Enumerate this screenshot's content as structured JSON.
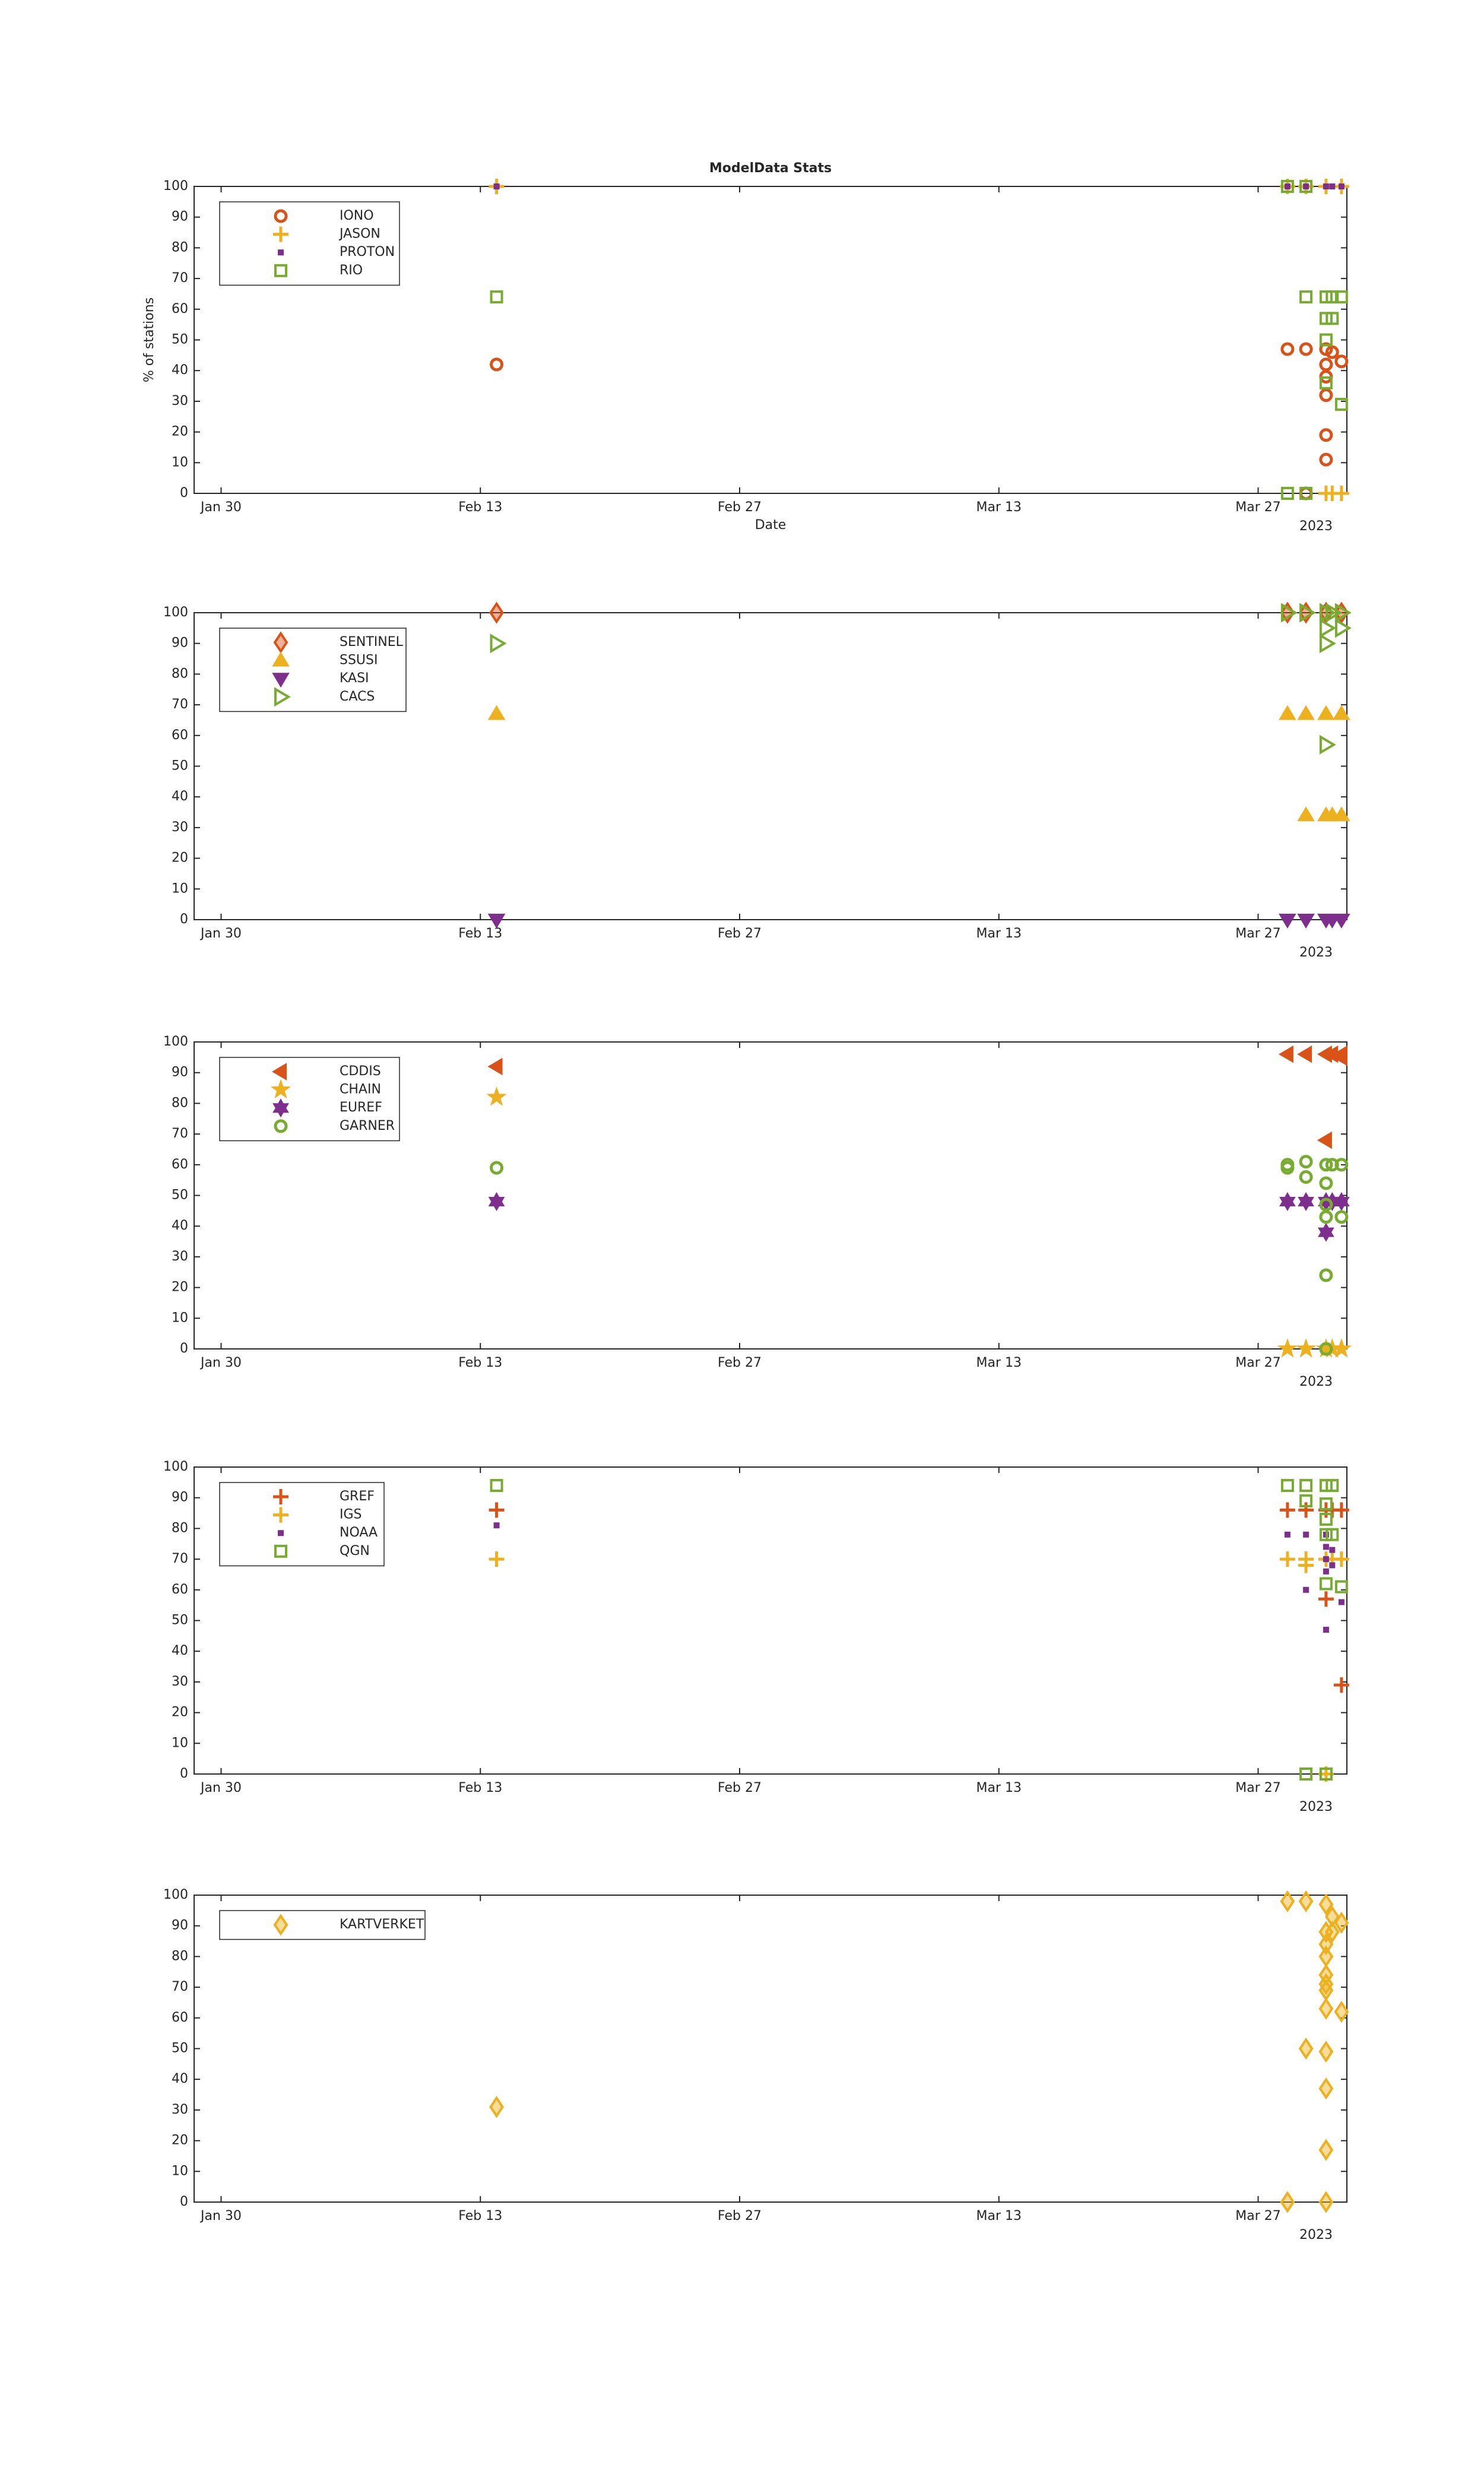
{
  "chart_data": [
    {
      "type": "scatter",
      "title": "ModelData Stats",
      "xlabel": "Date",
      "ylabel": "% of stations",
      "xlim": [
        "2023-01-28T13:00",
        "2023-03-31T19:00"
      ],
      "xticks": [
        {
          "value": "2023-01-30T00:00",
          "label": "Jan 30"
        },
        {
          "value": "2023-02-13T00:00",
          "label": "Feb 13"
        },
        {
          "value": "2023-02-27T00:00",
          "label": "Feb 27"
        },
        {
          "value": "2023-03-13T00:00",
          "label": "Mar 13"
        },
        {
          "value": "2023-03-27T00:00",
          "label": "Mar 27"
        }
      ],
      "x_offset_label": "2023",
      "ylim": [
        0,
        100
      ],
      "yticks": [
        0,
        10,
        20,
        30,
        40,
        50,
        60,
        70,
        80,
        90,
        100
      ],
      "series": [
        {
          "name": "IONO",
          "color": "#d95319",
          "marker": "o",
          "x": [
            "2023-02-13T21:00",
            "2023-03-28T14:00",
            "2023-03-29T14:00",
            "2023-03-30T16:00",
            "2023-03-30T16:00",
            "2023-03-30T16:00",
            "2023-03-30T16:00",
            "2023-03-30T16:00",
            "2023-03-30T16:00",
            "2023-03-31T00:00",
            "2023-03-31T12:00",
            "2023-03-29T14:00"
          ],
          "values": [
            42,
            47,
            47,
            47,
            42,
            38,
            32,
            19,
            11,
            46,
            43,
            0
          ]
        },
        {
          "name": "JASON",
          "color": "#edb120",
          "marker": "+",
          "x": [
            "2023-02-13T21:00",
            "2023-03-28T14:00",
            "2023-03-29T14:00",
            "2023-03-30T16:00",
            "2023-03-31T12:00",
            "2023-03-30T16:00",
            "2023-03-31T00:00",
            "2023-03-31T12:00"
          ],
          "values": [
            100,
            100,
            100,
            100,
            100,
            0,
            0,
            0
          ]
        },
        {
          "name": "PROTON",
          "color": "#7e2f8e",
          "marker": ".",
          "x": [
            "2023-02-13T21:00",
            "2023-03-28T14:00",
            "2023-03-29T14:00",
            "2023-03-30T16:00",
            "2023-03-31T00:00",
            "2023-03-31T12:00"
          ],
          "values": [
            100,
            100,
            100,
            100,
            100,
            100
          ]
        },
        {
          "name": "RIO",
          "color": "#77ac30",
          "marker": "s",
          "x": [
            "2023-02-13T21:00",
            "2023-03-28T14:00",
            "2023-03-28T14:00",
            "2023-03-29T14:00",
            "2023-03-29T14:00",
            "2023-03-29T14:00",
            "2023-03-30T16:00",
            "2023-03-30T16:00",
            "2023-03-30T16:00",
            "2023-03-30T16:00",
            "2023-03-31T00:00",
            "2023-03-31T00:00",
            "2023-03-31T12:00",
            "2023-03-31T12:00"
          ],
          "values": [
            64,
            0,
            100,
            64,
            0,
            100,
            64,
            57,
            50,
            36,
            64,
            57,
            64,
            29
          ]
        }
      ]
    },
    {
      "type": "scatter",
      "xlim": [
        "2023-01-28T13:00",
        "2023-03-31T19:00"
      ],
      "xticks": [
        {
          "value": "2023-01-30T00:00",
          "label": "Jan 30"
        },
        {
          "value": "2023-02-13T00:00",
          "label": "Feb 13"
        },
        {
          "value": "2023-02-27T00:00",
          "label": "Feb 27"
        },
        {
          "value": "2023-03-13T00:00",
          "label": "Mar 13"
        },
        {
          "value": "2023-03-27T00:00",
          "label": "Mar 27"
        }
      ],
      "x_offset_label": "2023",
      "ylim": [
        0,
        100
      ],
      "yticks": [
        0,
        10,
        20,
        30,
        40,
        50,
        60,
        70,
        80,
        90,
        100
      ],
      "series": [
        {
          "name": "SENTINEL",
          "color": "#d95319",
          "marker": "d",
          "x": [
            "2023-02-13T21:00",
            "2023-03-28T14:00",
            "2023-03-29T14:00",
            "2023-03-30T16:00",
            "2023-03-31T12:00"
          ],
          "values": [
            100,
            100,
            100,
            100,
            100
          ]
        },
        {
          "name": "SSUSI",
          "color": "#edb120",
          "marker": "^",
          "x": [
            "2023-02-13T21:00",
            "2023-03-28T14:00",
            "2023-03-29T14:00",
            "2023-03-29T14:00",
            "2023-03-30T16:00",
            "2023-03-30T16:00",
            "2023-03-31T00:00",
            "2023-03-31T12:00",
            "2023-03-31T12:00"
          ],
          "values": [
            67,
            67,
            67,
            34,
            67,
            34,
            34,
            67,
            34
          ]
        },
        {
          "name": "KASI",
          "color": "#7e2f8e",
          "marker": "v",
          "x": [
            "2023-02-13T21:00",
            "2023-03-28T14:00",
            "2023-03-29T14:00",
            "2023-03-30T16:00",
            "2023-03-31T00:00",
            "2023-03-31T12:00"
          ],
          "values": [
            0,
            0,
            0,
            0,
            0,
            0
          ]
        },
        {
          "name": "CACS",
          "color": "#77ac30",
          "marker": ">",
          "x": [
            "2023-02-13T21:00",
            "2023-03-28T14:00",
            "2023-03-29T14:00",
            "2023-03-30T16:00",
            "2023-03-30T16:00",
            "2023-03-30T16:00",
            "2023-03-30T16:00",
            "2023-03-31T00:00",
            "2023-03-31T12:00",
            "2023-03-31T12:00"
          ],
          "values": [
            90,
            100,
            100,
            100,
            90,
            95,
            57,
            100,
            100,
            95
          ]
        }
      ]
    },
    {
      "type": "scatter",
      "xlim": [
        "2023-01-28T13:00",
        "2023-03-31T19:00"
      ],
      "xticks": [
        {
          "value": "2023-01-30T00:00",
          "label": "Jan 30"
        },
        {
          "value": "2023-02-13T00:00",
          "label": "Feb 13"
        },
        {
          "value": "2023-02-27T00:00",
          "label": "Feb 27"
        },
        {
          "value": "2023-03-13T00:00",
          "label": "Mar 13"
        },
        {
          "value": "2023-03-27T00:00",
          "label": "Mar 27"
        }
      ],
      "x_offset_label": "2023",
      "ylim": [
        0,
        100
      ],
      "yticks": [
        0,
        10,
        20,
        30,
        40,
        50,
        60,
        70,
        80,
        90,
        100
      ],
      "series": [
        {
          "name": "CDDIS",
          "color": "#d95319",
          "marker": "<",
          "x": [
            "2023-02-13T21:00",
            "2023-03-28T14:00",
            "2023-03-29T14:00",
            "2023-03-30T16:00",
            "2023-03-30T16:00",
            "2023-03-31T00:00",
            "2023-03-31T12:00",
            "2023-03-31T12:00"
          ],
          "values": [
            92,
            96,
            96,
            96,
            68,
            96,
            96,
            95
          ]
        },
        {
          "name": "CHAIN",
          "color": "#edb120",
          "marker": "*",
          "x": [
            "2023-02-13T21:00",
            "2023-03-28T14:00",
            "2023-03-29T14:00",
            "2023-03-30T16:00",
            "2023-03-31T00:00",
            "2023-03-31T12:00"
          ],
          "values": [
            82,
            0,
            0,
            0,
            0,
            0
          ]
        },
        {
          "name": "EUREF",
          "color": "#7e2f8e",
          "marker": "h",
          "x": [
            "2023-02-13T21:00",
            "2023-03-28T14:00",
            "2023-03-29T14:00",
            "2023-03-30T16:00",
            "2023-03-30T16:00",
            "2023-03-31T00:00",
            "2023-03-31T12:00"
          ],
          "values": [
            48,
            48,
            48,
            48,
            38,
            48,
            48
          ]
        },
        {
          "name": "GARNER",
          "color": "#77ac30",
          "marker": "o",
          "x": [
            "2023-02-13T21:00",
            "2023-03-28T14:00",
            "2023-03-28T14:00",
            "2023-03-29T14:00",
            "2023-03-29T14:00",
            "2023-03-30T16:00",
            "2023-03-30T16:00",
            "2023-03-30T16:00",
            "2023-03-30T16:00",
            "2023-03-30T16:00",
            "2023-03-31T00:00",
            "2023-03-31T12:00",
            "2023-03-31T12:00",
            "2023-03-30T16:00"
          ],
          "values": [
            59,
            59,
            60,
            61,
            56,
            60,
            54,
            47,
            43,
            24,
            60,
            60,
            43,
            0
          ]
        }
      ]
    },
    {
      "type": "scatter",
      "xlim": [
        "2023-01-28T13:00",
        "2023-03-31T19:00"
      ],
      "xticks": [
        {
          "value": "2023-01-30T00:00",
          "label": "Jan 30"
        },
        {
          "value": "2023-02-13T00:00",
          "label": "Feb 13"
        },
        {
          "value": "2023-02-27T00:00",
          "label": "Feb 27"
        },
        {
          "value": "2023-03-13T00:00",
          "label": "Mar 13"
        },
        {
          "value": "2023-03-27T00:00",
          "label": "Mar 27"
        }
      ],
      "x_offset_label": "2023",
      "ylim": [
        0,
        100
      ],
      "yticks": [
        0,
        10,
        20,
        30,
        40,
        50,
        60,
        70,
        80,
        90,
        100
      ],
      "series": [
        {
          "name": "GREF",
          "color": "#d95319",
          "marker": "+",
          "x": [
            "2023-02-13T21:00",
            "2023-03-28T14:00",
            "2023-03-29T14:00",
            "2023-03-30T16:00",
            "2023-03-30T16:00",
            "2023-03-31T00:00",
            "2023-03-31T12:00",
            "2023-03-31T12:00"
          ],
          "values": [
            86,
            86,
            86,
            86,
            57,
            86,
            86,
            29
          ]
        },
        {
          "name": "IGS",
          "color": "#edb120",
          "marker": "+",
          "x": [
            "2023-02-13T21:00",
            "2023-03-28T14:00",
            "2023-03-29T14:00",
            "2023-03-29T14:00",
            "2023-03-30T16:00",
            "2023-03-31T00:00",
            "2023-03-31T12:00",
            "2023-03-30T16:00"
          ],
          "values": [
            70,
            70,
            70,
            68,
            70,
            70,
            70,
            0
          ]
        },
        {
          "name": "NOAA",
          "color": "#7e2f8e",
          "marker": ".",
          "x": [
            "2023-02-13T21:00",
            "2023-03-28T14:00",
            "2023-03-29T14:00",
            "2023-03-29T14:00",
            "2023-03-30T16:00",
            "2023-03-30T16:00",
            "2023-03-30T16:00",
            "2023-03-30T16:00",
            "2023-03-30T16:00",
            "2023-03-31T00:00",
            "2023-03-31T00:00",
            "2023-03-31T12:00"
          ],
          "values": [
            81,
            78,
            78,
            60,
            78,
            74,
            70,
            66,
            47,
            73,
            68,
            56
          ]
        },
        {
          "name": "QGN",
          "color": "#77ac30",
          "marker": "s",
          "x": [
            "2023-02-13T21:00",
            "2023-03-28T14:00",
            "2023-03-29T14:00",
            "2023-03-29T14:00",
            "2023-03-30T16:00",
            "2023-03-30T16:00",
            "2023-03-30T16:00",
            "2023-03-30T16:00",
            "2023-03-30T16:00",
            "2023-03-31T00:00",
            "2023-03-31T00:00",
            "2023-03-31T12:00",
            "2023-03-29T14:00",
            "2023-03-30T16:00"
          ],
          "values": [
            94,
            94,
            94,
            89,
            94,
            88,
            83,
            78,
            62,
            94,
            78,
            61,
            0,
            0
          ]
        }
      ]
    },
    {
      "type": "scatter",
      "xlim": [
        "2023-01-28T13:00",
        "2023-03-31T19:00"
      ],
      "xticks": [
        {
          "value": "2023-01-30T00:00",
          "label": "Jan 30"
        },
        {
          "value": "2023-02-13T00:00",
          "label": "Feb 13"
        },
        {
          "value": "2023-02-27T00:00",
          "label": "Feb 27"
        },
        {
          "value": "2023-03-13T00:00",
          "label": "Mar 13"
        },
        {
          "value": "2023-03-27T00:00",
          "label": "Mar 27"
        }
      ],
      "x_offset_label": "2023",
      "ylim": [
        0,
        100
      ],
      "yticks": [
        0,
        10,
        20,
        30,
        40,
        50,
        60,
        70,
        80,
        90,
        100
      ],
      "series": [
        {
          "name": "KARTVERKET",
          "color": "#edb120",
          "marker": "d",
          "x": [
            "2023-02-13T21:00",
            "2023-03-28T14:00",
            "2023-03-28T14:00",
            "2023-03-29T14:00",
            "2023-03-29T14:00",
            "2023-03-30T16:00",
            "2023-03-30T16:00",
            "2023-03-30T16:00",
            "2023-03-30T16:00",
            "2023-03-30T16:00",
            "2023-03-30T16:00",
            "2023-03-30T16:00",
            "2023-03-30T16:00",
            "2023-03-30T16:00",
            "2023-03-30T16:00",
            "2023-03-30T16:00",
            "2023-03-30T16:00",
            "2023-03-31T00:00",
            "2023-03-31T00:00",
            "2023-03-31T12:00",
            "2023-03-31T12:00"
          ],
          "values": [
            31,
            98,
            0,
            98,
            50,
            97,
            88,
            84,
            80,
            74,
            71,
            69,
            63,
            49,
            37,
            17,
            0,
            93,
            88,
            91,
            62
          ]
        }
      ]
    }
  ]
}
